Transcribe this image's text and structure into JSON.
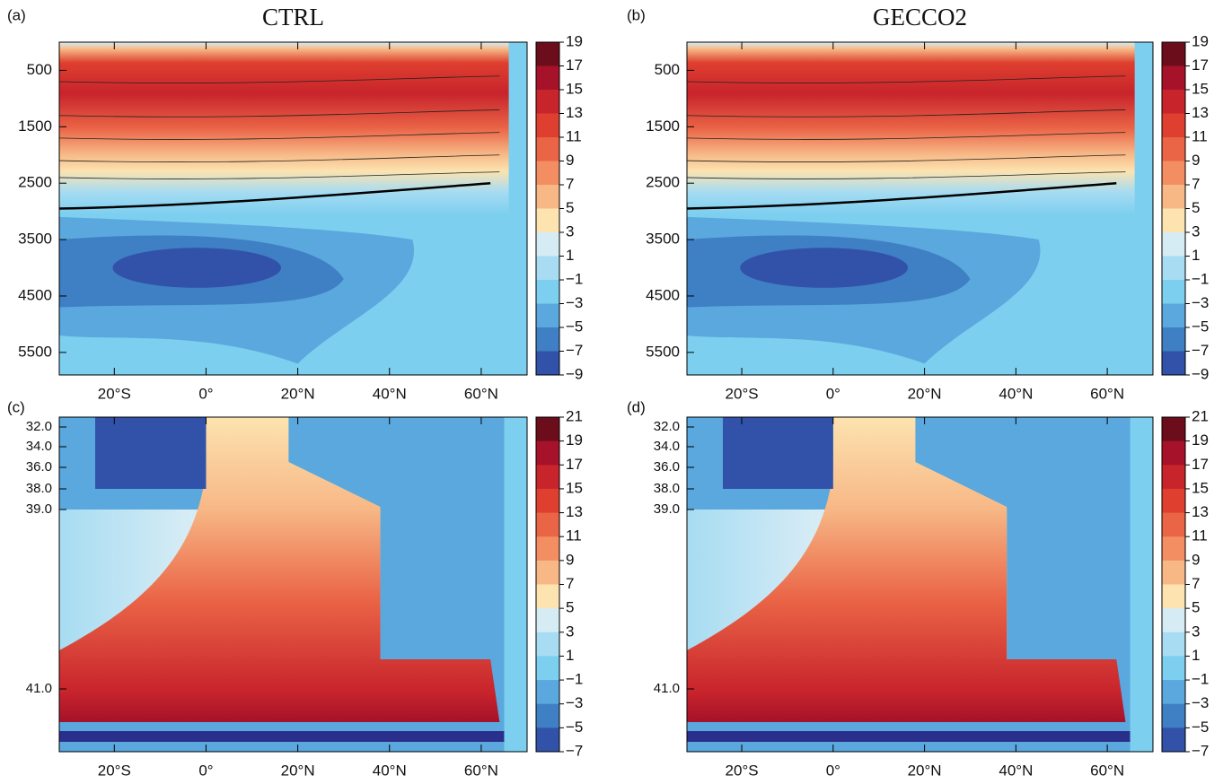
{
  "chart_data": [
    {
      "type": "contour",
      "label": "(a)",
      "title": "CTRL",
      "xlim": [
        -32,
        70
      ],
      "xticks": [
        {
          "value": -20,
          "label": "20°S"
        },
        {
          "value": 0,
          "label": "0°"
        },
        {
          "value": 20,
          "label": "20°N"
        },
        {
          "value": 40,
          "label": "40°N"
        },
        {
          "value": 60,
          "label": "60°N"
        }
      ],
      "ylim": [
        0,
        5900
      ],
      "y_inverted": true,
      "yticks": [
        500,
        1500,
        2500,
        3500,
        4500,
        5500
      ],
      "colorbar": {
        "ticks": [
          19,
          17,
          15,
          13,
          11,
          9,
          7,
          5,
          3,
          1,
          {
            "value": -1,
            "label": "−1"
          },
          {
            "value": -3,
            "label": "−3"
          },
          {
            "value": -5,
            "label": "−5"
          },
          {
            "value": -7,
            "label": "−7"
          },
          {
            "value": -9,
            "label": "−9"
          }
        ],
        "colors": [
          "#6b0d1a",
          "#a5122a",
          "#c8242c",
          "#de3f2e",
          "#ea6446",
          "#f38e62",
          "#f7b886",
          "#fce3b0",
          "#d6ecf5",
          "#a7dcf2",
          "#7dcff0",
          "#5aa8dd",
          "#3f7fc4",
          "#3152a8",
          "#2b2f8c"
        ]
      }
    },
    {
      "type": "contour",
      "label": "(b)",
      "title": "GECCO2",
      "xlim": [
        -32,
        70
      ],
      "xticks": [
        {
          "value": -20,
          "label": "20°S"
        },
        {
          "value": 0,
          "label": "0°"
        },
        {
          "value": 20,
          "label": "20°N"
        },
        {
          "value": 40,
          "label": "40°N"
        },
        {
          "value": 60,
          "label": "60°N"
        }
      ],
      "ylim": [
        0,
        5900
      ],
      "y_inverted": true,
      "yticks": [
        500,
        1500,
        2500,
        3500,
        4500,
        5500
      ],
      "colorbar": {
        "ticks": [
          19,
          17,
          15,
          13,
          11,
          9,
          7,
          5,
          3,
          1,
          {
            "value": -1,
            "label": "−1"
          },
          {
            "value": -3,
            "label": "−3"
          },
          {
            "value": -5,
            "label": "−5"
          },
          {
            "value": -7,
            "label": "−7"
          },
          {
            "value": -9,
            "label": "−9"
          }
        ],
        "colors": [
          "#6b0d1a",
          "#a5122a",
          "#c8242c",
          "#de3f2e",
          "#ea6446",
          "#f38e62",
          "#f7b886",
          "#fce3b0",
          "#d6ecf5",
          "#a7dcf2",
          "#7dcff0",
          "#5aa8dd",
          "#3f7fc4",
          "#3152a8",
          "#2b2f8c"
        ]
      }
    },
    {
      "type": "contour",
      "label": "(c)",
      "xlim": [
        -32,
        70
      ],
      "xticks": [
        {
          "value": -20,
          "label": "20°S"
        },
        {
          "value": 0,
          "label": "0°"
        },
        {
          "value": 20,
          "label": "20°N"
        },
        {
          "value": 40,
          "label": "40°N"
        },
        {
          "value": 60,
          "label": "60°N"
        }
      ],
      "yticks": [
        {
          "value": 32,
          "label": "32.0"
        },
        {
          "value": 34,
          "label": "34.0"
        },
        {
          "value": 36,
          "label": "36.0"
        },
        {
          "value": 38,
          "label": "38.0"
        },
        {
          "value": 39,
          "label": "39.0"
        },
        {
          "value": 41,
          "label": "41.0"
        }
      ],
      "colorbar": {
        "ticks": [
          21,
          19,
          17,
          15,
          13,
          11,
          9,
          7,
          5,
          3,
          1,
          {
            "value": -1,
            "label": "−1"
          },
          {
            "value": -3,
            "label": "−3"
          },
          {
            "value": -5,
            "label": "−5"
          },
          {
            "value": -7,
            "label": "−7"
          }
        ],
        "colors": [
          "#6b0d1a",
          "#a5122a",
          "#c8242c",
          "#de3f2e",
          "#ea6446",
          "#f38e62",
          "#f7b886",
          "#fce3b0",
          "#d6ecf5",
          "#a7dcf2",
          "#7dcff0",
          "#5aa8dd",
          "#3f7fc4",
          "#3152a8",
          "#2b2f8c"
        ]
      }
    },
    {
      "type": "contour",
      "label": "(d)",
      "xlim": [
        -32,
        70
      ],
      "xticks": [
        {
          "value": -20,
          "label": "20°S"
        },
        {
          "value": 0,
          "label": "0°"
        },
        {
          "value": 20,
          "label": "20°N"
        },
        {
          "value": 40,
          "label": "40°N"
        },
        {
          "value": 60,
          "label": "60°N"
        }
      ],
      "yticks": [
        {
          "value": 32,
          "label": "32.0"
        },
        {
          "value": 34,
          "label": "34.0"
        },
        {
          "value": 36,
          "label": "36.0"
        },
        {
          "value": 38,
          "label": "38.0"
        },
        {
          "value": 39,
          "label": "39.0"
        },
        {
          "value": 41,
          "label": "41.0"
        }
      ],
      "colorbar": {
        "ticks": [
          21,
          19,
          17,
          15,
          13,
          11,
          9,
          7,
          5,
          3,
          1,
          {
            "value": -1,
            "label": "−1"
          },
          {
            "value": -3,
            "label": "−3"
          },
          {
            "value": -5,
            "label": "−5"
          },
          {
            "value": -7,
            "label": "−7"
          }
        ],
        "colors": [
          "#6b0d1a",
          "#a5122a",
          "#c8242c",
          "#de3f2e",
          "#ea6446",
          "#f38e62",
          "#f7b886",
          "#fce3b0",
          "#d6ecf5",
          "#a7dcf2",
          "#7dcff0",
          "#5aa8dd",
          "#3f7fc4",
          "#3152a8",
          "#2b2f8c"
        ]
      }
    }
  ]
}
